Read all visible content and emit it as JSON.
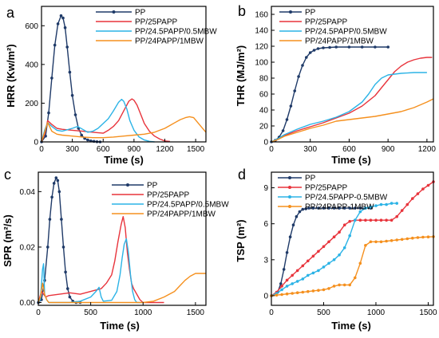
{
  "colors": {
    "PP": "#1f3a68",
    "PP25PAPP": "#e8343c",
    "PP245": "#2bb3e6",
    "PP24": "#f5901e"
  },
  "chart_data": [
    {
      "panel_label": "a",
      "type": "line",
      "xlabel": "Time (s)",
      "ylabel": "HRR (Kw/m²)",
      "xlim": [
        0,
        1600
      ],
      "ylim": [
        0,
        700
      ],
      "xticks": [
        "0",
        "300",
        "600",
        "900",
        "1200",
        "1500"
      ],
      "yticks": [
        "0",
        "200",
        "400",
        "600"
      ],
      "legend_position": "top-right",
      "series": [
        {
          "name": "PP",
          "color_key": "PP",
          "markers": true,
          "x": [
            0,
            40,
            70,
            100,
            130,
            160,
            190,
            210,
            230,
            250,
            275,
            300,
            330,
            360,
            390,
            420,
            450,
            480,
            510,
            540,
            570
          ],
          "y": [
            0,
            30,
            150,
            330,
            500,
            610,
            652,
            640,
            590,
            490,
            360,
            240,
            140,
            70,
            35,
            18,
            10,
            5,
            3,
            1,
            0
          ]
        },
        {
          "name": "PP/25PAPP",
          "color_key": "PP25PAPP",
          "markers": false,
          "x": [
            0,
            30,
            60,
            100,
            150,
            200,
            300,
            400,
            500,
            600,
            650,
            700,
            750,
            800,
            850,
            880,
            900,
            930,
            960,
            1000,
            1050,
            1100,
            1150,
            1200,
            1250
          ],
          "y": [
            0,
            40,
            110,
            90,
            70,
            65,
            60,
            55,
            50,
            45,
            60,
            80,
            110,
            160,
            210,
            222,
            215,
            190,
            150,
            95,
            55,
            30,
            15,
            5,
            2
          ]
        },
        {
          "name": "PP/24.5PAPP/0.5MBW",
          "color_key": "PP245",
          "markers": false,
          "x": [
            0,
            30,
            60,
            100,
            150,
            200,
            300,
            350,
            400,
            450,
            500,
            550,
            600,
            650,
            700,
            750,
            780,
            800,
            830,
            860,
            900,
            950,
            1000,
            1050,
            1100
          ],
          "y": [
            0,
            60,
            100,
            80,
            60,
            55,
            70,
            80,
            65,
            50,
            55,
            70,
            95,
            120,
            160,
            205,
            220,
            210,
            170,
            110,
            60,
            25,
            10,
            3,
            0
          ]
        },
        {
          "name": "PP/24PAPP/1MBW",
          "color_key": "PP24",
          "markers": false,
          "x": [
            0,
            30,
            60,
            100,
            150,
            200,
            300,
            400,
            500,
            600,
            700,
            800,
            900,
            1000,
            1100,
            1150,
            1200,
            1250,
            1300,
            1350,
            1400,
            1440,
            1480,
            1520,
            1560,
            1600
          ],
          "y": [
            0,
            50,
            100,
            55,
            40,
            35,
            30,
            25,
            22,
            22,
            25,
            30,
            35,
            40,
            50,
            60,
            70,
            85,
            100,
            115,
            125,
            130,
            125,
            100,
            75,
            50
          ]
        }
      ]
    },
    {
      "panel_label": "b",
      "type": "line",
      "xlabel": "Time (s)",
      "ylabel": "THR (MJ/m²)",
      "xlim": [
        0,
        1250
      ],
      "ylim": [
        0,
        170
      ],
      "xticks": [
        "0",
        "300",
        "600",
        "900",
        "1200"
      ],
      "yticks": [
        "0",
        "20",
        "40",
        "60",
        "80",
        "100",
        "120",
        "140",
        "160"
      ],
      "legend_position": "top-left",
      "series": [
        {
          "name": "PP",
          "color_key": "PP",
          "markers": true,
          "x": [
            0,
            30,
            60,
            90,
            120,
            150,
            180,
            210,
            240,
            270,
            300,
            330,
            360,
            400,
            450,
            500,
            600,
            700,
            800,
            900
          ],
          "y": [
            0,
            2,
            6,
            14,
            28,
            45,
            64,
            82,
            96,
            106,
            112,
            115,
            117,
            118,
            118.5,
            119,
            119,
            119,
            119,
            119
          ]
        },
        {
          "name": "PP/25PAPP",
          "color_key": "PP25PAPP",
          "markers": false,
          "x": [
            0,
            50,
            100,
            200,
            300,
            400,
            500,
            600,
            700,
            800,
            850,
            900,
            950,
            1000,
            1050,
            1100,
            1150,
            1200,
            1240
          ],
          "y": [
            0,
            3,
            8,
            14,
            19,
            24,
            30,
            36,
            45,
            58,
            68,
            78,
            88,
            95,
            100,
            103,
            105,
            106,
            106
          ]
        },
        {
          "name": "PP/24.5PAPP/0.5MBW",
          "color_key": "PP245",
          "markers": false,
          "x": [
            0,
            50,
            100,
            200,
            300,
            400,
            500,
            600,
            700,
            750,
            800,
            850,
            900,
            1000,
            1100,
            1200
          ],
          "y": [
            0,
            4,
            9,
            16,
            22,
            26,
            31,
            38,
            50,
            60,
            72,
            80,
            84,
            86,
            87,
            87
          ]
        },
        {
          "name": "PP/24PAPP/1MBW",
          "color_key": "PP24",
          "markers": false,
          "x": [
            0,
            50,
            100,
            200,
            300,
            400,
            500,
            600,
            700,
            800,
            900,
            1000,
            1100,
            1200,
            1250
          ],
          "y": [
            0,
            3,
            7,
            12,
            17,
            21,
            26,
            28,
            30,
            32,
            35,
            38,
            43,
            50,
            54
          ]
        }
      ]
    },
    {
      "panel_label": "c",
      "type": "line",
      "xlabel": "Time (s)",
      "ylabel": "SPR (m²/s)",
      "xlim": [
        0,
        1600
      ],
      "ylim": [
        -0.001,
        0.047
      ],
      "xticks": [
        "0",
        "500",
        "1000",
        "1500"
      ],
      "yticks": [
        "0.00",
        "0.02",
        "0.04"
      ],
      "legend_position": "top-right",
      "series": [
        {
          "name": "PP",
          "color_key": "PP",
          "markers": true,
          "x": [
            0,
            30,
            60,
            90,
            110,
            130,
            150,
            170,
            185,
            200,
            220,
            240,
            260,
            280,
            300,
            330,
            360,
            400
          ],
          "y": [
            0,
            0.001,
            0.008,
            0.02,
            0.03,
            0.038,
            0.043,
            0.045,
            0.044,
            0.04,
            0.03,
            0.02,
            0.011,
            0.005,
            0.002,
            0.0005,
            0,
            0
          ]
        },
        {
          "name": "PP/25PAPP",
          "color_key": "PP25PAPP",
          "markers": false,
          "x": [
            0,
            30,
            50,
            70,
            100,
            200,
            300,
            400,
            500,
            600,
            650,
            700,
            730,
            760,
            790,
            810,
            830,
            850,
            870,
            890,
            910,
            940,
            970,
            1000,
            1100,
            1200
          ],
          "y": [
            0,
            0.004,
            0.003,
            0.002,
            0.0025,
            0.003,
            0.0035,
            0.003,
            0.004,
            0.005,
            0.007,
            0.01,
            0.015,
            0.022,
            0.028,
            0.031,
            0.027,
            0.018,
            0.012,
            0.007,
            0.005,
            0.003,
            0.001,
            0,
            0,
            0
          ]
        },
        {
          "name": "PP/24.5PAPP/0.5MBW",
          "color_key": "PP245",
          "markers": false,
          "x": [
            0,
            20,
            40,
            50,
            60,
            80,
            100,
            200,
            300,
            400,
            500,
            550,
            580,
            600,
            620,
            700,
            750,
            780,
            800,
            820,
            840,
            860,
            880,
            900,
            920,
            940,
            960,
            1000
          ],
          "y": [
            0,
            0.001,
            0.012,
            0.014,
            0.003,
            0.001,
            0,
            0,
            0,
            0.0005,
            0.002,
            0.004,
            0.0055,
            0.002,
            0.0005,
            0.0008,
            0.004,
            0.01,
            0.016,
            0.021,
            0.023,
            0.018,
            0.01,
            0.004,
            0.001,
            0,
            0,
            0
          ]
        },
        {
          "name": "PP/24PAPP/1MBW",
          "color_key": "PP24",
          "markers": false,
          "x": [
            0,
            20,
            40,
            60,
            80,
            100,
            200,
            400,
            600,
            800,
            1000,
            1100,
            1200,
            1300,
            1350,
            1400,
            1450,
            1500,
            1550,
            1600
          ],
          "y": [
            0,
            0.002,
            0.007,
            0.003,
            0.001,
            0,
            0,
            0,
            0,
            0,
            0,
            0.0005,
            0.002,
            0.004,
            0.006,
            0.008,
            0.0095,
            0.0105,
            0.0105,
            0.0105
          ]
        }
      ]
    },
    {
      "panel_label": "d",
      "type": "line",
      "xlabel": "Time (s)",
      "ylabel": "TSP (m²)",
      "xlim": [
        0,
        1550
      ],
      "ylim": [
        -0.8,
        10.3
      ],
      "xticks": [
        "0",
        "500",
        "1000",
        "1500"
      ],
      "yticks": [
        "0",
        "3",
        "6",
        "9"
      ],
      "legend_position": "top-left",
      "series": [
        {
          "name": "PP",
          "color_key": "PP",
          "markers": true,
          "x": [
            0,
            60,
            90,
            120,
            150,
            180,
            210,
            240,
            270,
            300,
            330,
            360,
            400,
            450,
            500,
            550,
            600,
            650,
            700,
            750,
            800,
            850,
            900,
            950
          ],
          "y": [
            0,
            0.3,
            1.0,
            2.2,
            3.6,
            4.9,
            5.9,
            6.6,
            7.0,
            7.2,
            7.25,
            7.3,
            7.3,
            7.3,
            7.3,
            7.3,
            7.3,
            7.3,
            7.3,
            7.3,
            7.3,
            7.3,
            7.3,
            7.3
          ]
        },
        {
          "name": "PP/25PAPP",
          "color_key": "PP25PAPP",
          "markers": true,
          "x": [
            0,
            50,
            100,
            150,
            200,
            250,
            300,
            350,
            400,
            450,
            500,
            550,
            600,
            650,
            700,
            750,
            800,
            850,
            900,
            950,
            1000,
            1050,
            1100,
            1150,
            1200,
            1250,
            1300,
            1350,
            1400,
            1450,
            1500,
            1550
          ],
          "y": [
            0,
            0.3,
            0.8,
            1.3,
            1.7,
            2.1,
            2.5,
            2.9,
            3.3,
            3.7,
            4.1,
            4.5,
            4.9,
            5.3,
            5.9,
            6.2,
            6.3,
            6.3,
            6.3,
            6.3,
            6.3,
            6.3,
            6.3,
            6.3,
            6.6,
            7.1,
            7.6,
            8.1,
            8.5,
            8.9,
            9.2,
            9.5
          ]
        },
        {
          "name": "PP/24.5PAPP-0.5MBW",
          "color_key": "PP245",
          "markers": true,
          "x": [
            0,
            50,
            100,
            150,
            200,
            250,
            300,
            350,
            400,
            450,
            500,
            550,
            600,
            650,
            700,
            750,
            800,
            850,
            900,
            950,
            1000,
            1050,
            1100,
            1150,
            1200
          ],
          "y": [
            0,
            0.2,
            0.5,
            0.8,
            1.0,
            1.2,
            1.4,
            1.7,
            1.9,
            2.1,
            2.4,
            2.7,
            3.0,
            3.4,
            4.0,
            5.0,
            6.3,
            7.0,
            7.3,
            7.4,
            7.5,
            7.6,
            7.6,
            7.7,
            7.7
          ]
        },
        {
          "name": "PP/24PAPP-1MBW",
          "color_key": "PP24",
          "markers": true,
          "x": [
            0,
            50,
            100,
            150,
            200,
            250,
            300,
            350,
            400,
            450,
            500,
            550,
            600,
            650,
            700,
            750,
            800,
            850,
            900,
            950,
            1000,
            1050,
            1100,
            1150,
            1200,
            1250,
            1300,
            1350,
            1400,
            1450,
            1500,
            1550
          ],
          "y": [
            0,
            0.05,
            0.1,
            0.15,
            0.2,
            0.25,
            0.3,
            0.35,
            0.4,
            0.45,
            0.5,
            0.6,
            0.8,
            0.9,
            0.9,
            0.9,
            1.5,
            2.7,
            4.2,
            4.5,
            4.5,
            4.5,
            4.55,
            4.6,
            4.65,
            4.7,
            4.75,
            4.8,
            4.85,
            4.88,
            4.9,
            4.92
          ]
        }
      ]
    }
  ]
}
